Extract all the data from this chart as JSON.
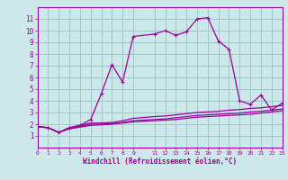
{
  "xlabel": "Windchill (Refroidissement éolien,°C)",
  "bg_color": "#cce8e8",
  "grid_color": "#a0c8c8",
  "line_color": "#990099",
  "xmin": 0,
  "xmax": 23,
  "ymin": 0,
  "ymax": 12,
  "yticks": [
    1,
    2,
    3,
    4,
    5,
    6,
    7,
    8,
    9,
    10,
    11
  ],
  "xticks": [
    0,
    1,
    2,
    3,
    4,
    5,
    6,
    7,
    8,
    9,
    11,
    12,
    13,
    14,
    15,
    16,
    17,
    18,
    19,
    20,
    21,
    22,
    23
  ],
  "main_x": [
    0,
    1,
    2,
    3,
    4,
    5,
    6,
    7,
    8,
    9,
    11,
    12,
    13,
    14,
    15,
    16,
    17,
    18,
    19,
    20,
    21,
    22,
    23
  ],
  "main_y": [
    1.8,
    1.7,
    1.3,
    1.7,
    1.9,
    2.4,
    4.6,
    7.1,
    5.6,
    9.5,
    9.7,
    10.0,
    9.6,
    9.9,
    11.0,
    11.1,
    9.1,
    8.4,
    4.0,
    3.7,
    4.5,
    3.2,
    3.8
  ],
  "line2_x": [
    0,
    1,
    2,
    3,
    4,
    5,
    6,
    7,
    8,
    9,
    11,
    12,
    13,
    14,
    15,
    16,
    17,
    18,
    19,
    20,
    21,
    22,
    23
  ],
  "line2_y": [
    1.8,
    1.7,
    1.3,
    1.7,
    1.9,
    2.1,
    2.1,
    2.15,
    2.3,
    2.5,
    2.65,
    2.7,
    2.8,
    2.9,
    3.0,
    3.05,
    3.1,
    3.2,
    3.25,
    3.35,
    3.4,
    3.5,
    3.6
  ],
  "line3_x": [
    0,
    1,
    2,
    3,
    4,
    5,
    6,
    7,
    8,
    9,
    11,
    12,
    13,
    14,
    15,
    16,
    17,
    18,
    19,
    20,
    21,
    22,
    23
  ],
  "line3_y": [
    1.8,
    1.7,
    1.3,
    1.65,
    1.8,
    2.0,
    2.0,
    2.05,
    2.15,
    2.3,
    2.4,
    2.45,
    2.55,
    2.65,
    2.75,
    2.8,
    2.85,
    2.9,
    2.95,
    3.05,
    3.1,
    3.2,
    3.3
  ],
  "line4_x": [
    0,
    1,
    2,
    3,
    4,
    5,
    6,
    7,
    8,
    9,
    11,
    12,
    13,
    14,
    15,
    16,
    17,
    18,
    19,
    20,
    21,
    22,
    23
  ],
  "line4_y": [
    1.8,
    1.7,
    1.3,
    1.6,
    1.75,
    1.9,
    1.95,
    2.0,
    2.1,
    2.2,
    2.3,
    2.35,
    2.4,
    2.5,
    2.6,
    2.65,
    2.7,
    2.75,
    2.8,
    2.85,
    2.95,
    3.05,
    3.15
  ]
}
